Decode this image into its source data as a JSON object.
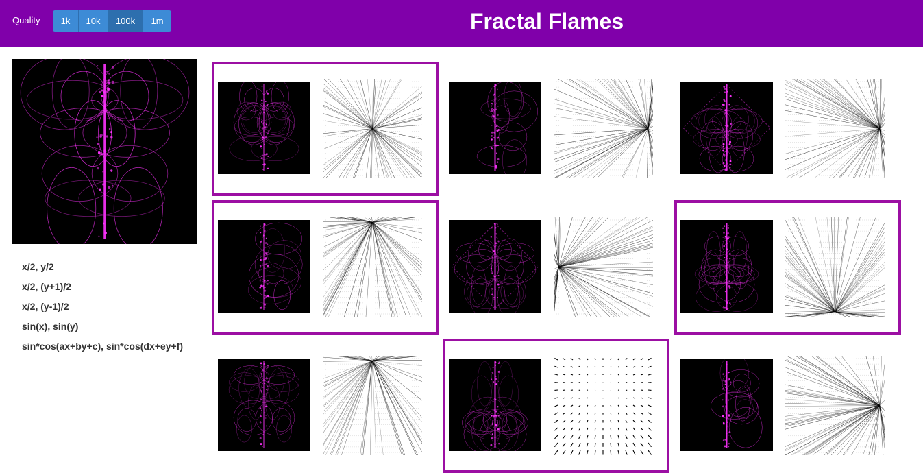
{
  "header": {
    "quality_label": "Quality",
    "quality_options": [
      "1k",
      "10k",
      "100k",
      "1m"
    ],
    "active_quality": "100k",
    "title": "Fractal Flames",
    "bar_color": "#8000aa"
  },
  "variations": [
    "x/2, y/2",
    "x/2, (y+1)/2",
    "x/2, (y-1)/2",
    "sin(x), sin(y)",
    "sin*cos(ax+by+c), sin*cos(dx+ey+f)"
  ],
  "grid": {
    "cells": [
      {
        "row": 0,
        "col": 0,
        "selected": true
      },
      {
        "row": 0,
        "col": 1,
        "selected": false
      },
      {
        "row": 0,
        "col": 2,
        "selected": false
      },
      {
        "row": 1,
        "col": 0,
        "selected": true
      },
      {
        "row": 1,
        "col": 1,
        "selected": false
      },
      {
        "row": 1,
        "col": 2,
        "selected": true
      },
      {
        "row": 2,
        "col": 0,
        "selected": false
      },
      {
        "row": 2,
        "col": 1,
        "selected": true
      },
      {
        "row": 2,
        "col": 2,
        "selected": false
      }
    ]
  },
  "colors": {
    "flame": "#ff33ff",
    "selection_border": "#9c0fa3",
    "button": "#3d8bd6"
  }
}
